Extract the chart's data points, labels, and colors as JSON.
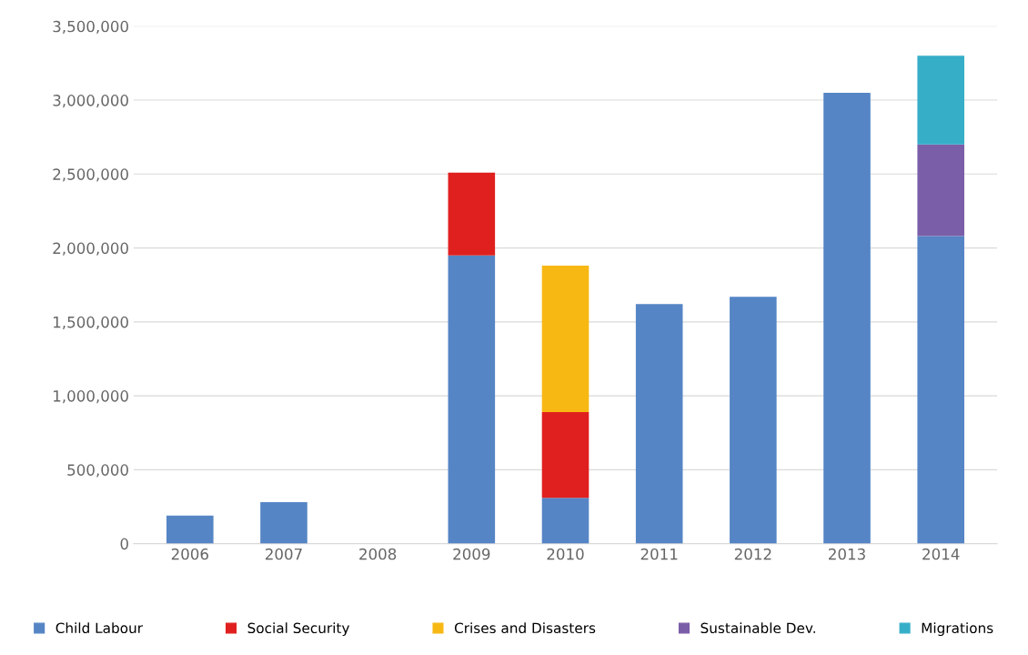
{
  "chart_data": {
    "type": "bar",
    "stacked": true,
    "categories": [
      "2006",
      "2007",
      "2008",
      "2009",
      "2010",
      "2011",
      "2012",
      "2013",
      "2014"
    ],
    "series": [
      {
        "name": "Child Labour",
        "color": "#5585c5",
        "values": [
          190000,
          280000,
          null,
          1950000,
          310000,
          1620000,
          1670000,
          3050000,
          2080000
        ]
      },
      {
        "name": "Social Security",
        "color": "#e0201f",
        "values": [
          null,
          null,
          null,
          560000,
          580000,
          null,
          null,
          null,
          null
        ]
      },
      {
        "name": "Crises and Disasters",
        "color": "#f7b813",
        "values": [
          null,
          null,
          null,
          null,
          990000,
          null,
          null,
          null,
          null
        ]
      },
      {
        "name": "Sustainable Dev.",
        "color": "#7b5ea8",
        "values": [
          null,
          null,
          null,
          null,
          null,
          null,
          null,
          null,
          620000
        ]
      },
      {
        "name": "Migrations",
        "color": "#36aec8",
        "values": [
          null,
          null,
          null,
          null,
          null,
          null,
          null,
          null,
          600000
        ]
      }
    ],
    "ylim": [
      0,
      3500000
    ],
    "yticks": [
      0,
      {
        "value": 500000,
        "label": "500,000"
      },
      {
        "value": 1000000,
        "label": "1,000,000"
      },
      {
        "value": 1500000,
        "label": "1,500,000"
      },
      {
        "value": 2000000,
        "label": "2,000,000"
      },
      {
        "value": 2500000,
        "label": "2,500,000"
      },
      {
        "value": 3000000,
        "label": "3,000,000"
      },
      {
        "value": 3500000,
        "label": "3,500,000"
      }
    ],
    "grid": "y",
    "legend": "bottom"
  }
}
